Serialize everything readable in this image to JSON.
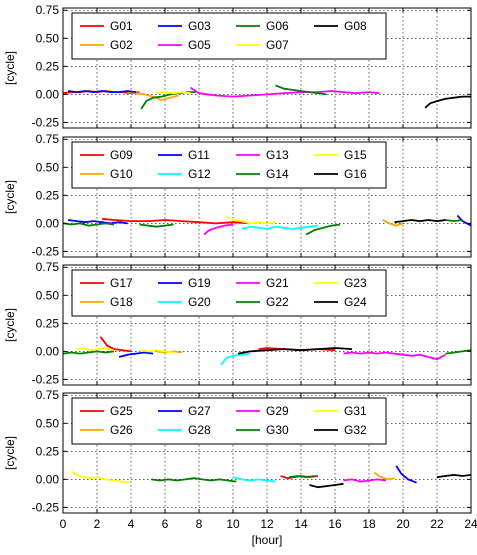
{
  "chart_data": {
    "type": "line",
    "xlabel": "[hour]",
    "ylabel": "[cycle]",
    "xlim": [
      0,
      24
    ],
    "ylim": [
      -0.3,
      0.77
    ],
    "x_ticks": [
      "0",
      "2",
      "4",
      "6",
      "8",
      "10",
      "12",
      "14",
      "16",
      "18",
      "20",
      "22",
      "24"
    ],
    "y_ticks": [
      "0.75",
      "0.50",
      "0.25",
      "0.00",
      "-0.25"
    ],
    "y_tick_values": [
      0.75,
      0.5,
      0.25,
      0.0,
      -0.25
    ],
    "grid": true,
    "legend_placement": "top-left",
    "panels": [
      {
        "series": [
          {
            "name": "G01",
            "color": "#ff0000",
            "x": [
              0.0,
              0.5,
              1.0,
              1.5,
              2.0,
              2.5,
              3.0,
              3.5,
              4.0,
              4.5
            ],
            "y": [
              0.01,
              0.02,
              0.02,
              0.03,
              0.02,
              0.03,
              0.02,
              0.02,
              0.01,
              0.02
            ]
          },
          {
            "name": "G02",
            "color": "#ffa500",
            "x": [
              3.8,
              4.3,
              4.8,
              5.3,
              5.8,
              6.3,
              6.8
            ],
            "y": [
              0.02,
              0.01,
              0.0,
              -0.02,
              -0.05,
              -0.03,
              -0.01
            ]
          },
          {
            "name": "G03",
            "color": "#0000ff",
            "x": [
              0.3,
              0.8,
              1.3,
              1.8,
              2.3,
              2.8,
              3.3,
              3.8,
              4.3
            ],
            "y": [
              0.03,
              0.02,
              0.03,
              0.02,
              0.03,
              0.02,
              0.02,
              0.03,
              0.02
            ]
          },
          {
            "name": "G05",
            "color": "#ff00ff",
            "x": [
              7.5,
              8.0,
              9.0,
              10.0,
              11.0,
              12.0,
              13.0,
              14.0,
              15.0,
              15.8,
              16.5,
              17.2,
              18.0,
              18.6
            ],
            "y": [
              0.06,
              0.01,
              -0.01,
              -0.02,
              -0.01,
              0.0,
              0.01,
              0.02,
              0.02,
              0.03,
              0.02,
              0.01,
              0.02,
              0.01
            ]
          },
          {
            "name": "G06",
            "color": "#008000",
            "x": [
              4.6,
              4.9,
              5.3,
              5.8,
              6.3,
              6.8,
              7.3,
              7.8,
              12.5,
              13.0,
              13.5,
              14.0,
              14.5,
              15.0,
              15.5
            ],
            "y": [
              -0.13,
              -0.06,
              -0.03,
              -0.02,
              0.0,
              0.01,
              0.02,
              0.02,
              0.08,
              0.05,
              0.04,
              0.03,
              0.02,
              0.01,
              0.0
            ]
          },
          {
            "name": "G07",
            "color": "#ffff00",
            "x": [
              5.5,
              6.0,
              6.5,
              7.0,
              7.5
            ],
            "y": [
              0.01,
              0.02,
              0.01,
              0.02,
              0.01
            ]
          },
          {
            "name": "G08",
            "color": "#000000",
            "x": [
              21.3,
              21.6,
              22.0,
              22.5,
              23.0,
              23.5,
              24.0
            ],
            "y": [
              -0.12,
              -0.08,
              -0.06,
              -0.04,
              -0.03,
              -0.02,
              -0.02
            ]
          }
        ]
      },
      {
        "series": [
          {
            "name": "G09",
            "color": "#ff0000",
            "x": [
              2.3,
              3.0,
              4.0,
              5.0,
              6.0,
              7.0,
              8.0,
              9.0,
              10.0,
              11.0
            ],
            "y": [
              0.04,
              0.03,
              0.02,
              0.02,
              0.03,
              0.02,
              0.01,
              0.0,
              0.01,
              0.0
            ]
          },
          {
            "name": "G10",
            "color": "#ffa500",
            "x": [
              18.8,
              19.2,
              19.6,
              20.0
            ],
            "y": [
              0.03,
              0.0,
              -0.02,
              0.0
            ]
          },
          {
            "name": "G11",
            "color": "#0000ff",
            "x": [
              0.3,
              0.8,
              1.3,
              1.8,
              2.3,
              2.8,
              3.3,
              3.8,
              23.2,
              23.5,
              24.0
            ],
            "y": [
              0.03,
              0.02,
              0.01,
              0.02,
              0.01,
              0.0,
              0.01,
              0.0,
              0.07,
              0.02,
              -0.02
            ]
          },
          {
            "name": "G12",
            "color": "#00ffff",
            "x": [
              10.5,
              11.0,
              11.5,
              12.0,
              12.5,
              13.0,
              13.5,
              14.0,
              14.5,
              15.0
            ],
            "y": [
              -0.05,
              -0.03,
              -0.04,
              -0.05,
              -0.03,
              -0.04,
              -0.05,
              -0.04,
              -0.03,
              -0.02
            ]
          },
          {
            "name": "G13",
            "color": "#ff00ff",
            "x": [
              8.3,
              8.6,
              9.0,
              9.5,
              10.0
            ],
            "y": [
              -0.1,
              -0.06,
              -0.04,
              -0.02,
              -0.01
            ]
          },
          {
            "name": "G14",
            "color": "#008000",
            "x": [
              0.0,
              0.5,
              1.0,
              1.5,
              2.0,
              2.5,
              3.0,
              4.5,
              5.0,
              5.5,
              6.0,
              6.5,
              14.3,
              14.8,
              15.3,
              15.8,
              16.3,
              22.0,
              22.5,
              23.0,
              23.5
            ],
            "y": [
              0.0,
              -0.01,
              0.0,
              -0.02,
              -0.01,
              0.0,
              -0.01,
              -0.01,
              -0.02,
              -0.03,
              -0.02,
              -0.01,
              -0.1,
              -0.06,
              -0.04,
              -0.02,
              -0.01,
              0.02,
              0.03,
              0.02,
              0.03
            ]
          },
          {
            "name": "G15",
            "color": "#ffff00",
            "x": [
              9.6,
              10.0,
              10.5,
              11.0,
              11.5,
              12.0,
              12.5
            ],
            "y": [
              0.06,
              0.03,
              0.02,
              0.0,
              0.01,
              0.0,
              0.01
            ]
          },
          {
            "name": "G16",
            "color": "#000000",
            "x": [
              19.5,
              20.0,
              20.5,
              21.0,
              21.5,
              22.0,
              22.5
            ],
            "y": [
              0.01,
              0.02,
              0.03,
              0.02,
              0.03,
              0.02,
              0.03
            ]
          }
        ]
      },
      {
        "series": [
          {
            "name": "G17",
            "color": "#ff0000",
            "x": [
              2.2,
              2.6,
              3.0,
              3.5,
              4.0,
              11.5,
              12.0,
              13.0,
              14.0,
              15.0,
              16.0
            ],
            "y": [
              0.13,
              0.05,
              0.02,
              0.01,
              0.0,
              0.02,
              0.03,
              0.02,
              0.01,
              0.02,
              0.01
            ]
          },
          {
            "name": "G18",
            "color": "#ffa500",
            "x": [
              5.5,
              6.0,
              6.5,
              7.0
            ],
            "y": [
              0.0,
              -0.01,
              0.0,
              -0.01
            ]
          },
          {
            "name": "G19",
            "color": "#0000ff",
            "x": [
              3.3,
              3.8,
              4.3,
              4.8,
              5.3
            ],
            "y": [
              -0.05,
              -0.03,
              -0.02,
              -0.01,
              -0.02
            ]
          },
          {
            "name": "G20",
            "color": "#00ffff",
            "x": [
              9.3,
              9.6,
              10.0,
              10.5,
              11.0
            ],
            "y": [
              -0.12,
              -0.06,
              -0.04,
              -0.03,
              -0.02
            ]
          },
          {
            "name": "G21",
            "color": "#ff00ff",
            "x": [
              16.5,
              17.0,
              17.5,
              18.0,
              18.5,
              19.0,
              19.5,
              20.0,
              20.5,
              21.0,
              21.5,
              22.0,
              22.5
            ],
            "y": [
              -0.02,
              -0.01,
              -0.02,
              -0.01,
              -0.02,
              -0.01,
              -0.02,
              -0.03,
              -0.04,
              -0.03,
              -0.05,
              -0.07,
              -0.03
            ]
          },
          {
            "name": "G22",
            "color": "#008000",
            "x": [
              0.0,
              0.5,
              1.0,
              1.5,
              2.0,
              2.5,
              3.0,
              22.5,
              23.0,
              23.5,
              24.0
            ],
            "y": [
              -0.02,
              -0.01,
              -0.02,
              -0.01,
              0.0,
              -0.01,
              0.0,
              -0.02,
              -0.01,
              0.0,
              0.01
            ]
          },
          {
            "name": "G23",
            "color": "#ffff00",
            "x": [
              0.8,
              1.2,
              1.6,
              2.0,
              2.4,
              3.0,
              4.5,
              5.0,
              5.5,
              6.0,
              6.5
            ],
            "y": [
              0.02,
              0.03,
              0.01,
              0.02,
              0.03,
              0.01,
              0.01,
              0.0,
              0.01,
              0.0,
              -0.01
            ]
          },
          {
            "name": "G24",
            "color": "#000000",
            "x": [
              10.3,
              11.0,
              12.0,
              13.0,
              14.0,
              15.0,
              16.0,
              17.0
            ],
            "y": [
              -0.02,
              0.0,
              0.01,
              0.02,
              0.01,
              0.02,
              0.03,
              0.02
            ]
          }
        ]
      },
      {
        "series": [
          {
            "name": "G25",
            "color": "#ff0000",
            "x": [
              12.8,
              13.2,
              13.6,
              14.0,
              14.5,
              15.0
            ],
            "y": [
              0.03,
              0.01,
              0.02,
              0.03,
              0.02,
              0.03
            ]
          },
          {
            "name": "G26",
            "color": "#ffa500",
            "x": [
              18.3,
              18.7,
              19.1,
              19.5
            ],
            "y": [
              0.06,
              0.02,
              0.0,
              0.01
            ]
          },
          {
            "name": "G27",
            "color": "#0000ff",
            "x": [
              19.6,
              19.9,
              20.3,
              20.8
            ],
            "y": [
              0.12,
              0.05,
              0.0,
              -0.03
            ]
          },
          {
            "name": "G28",
            "color": "#00ffff",
            "x": [
              10.0,
              10.5,
              11.0,
              11.5,
              12.0,
              12.5
            ],
            "y": [
              0.02,
              0.0,
              -0.01,
              0.0,
              -0.01,
              -0.02
            ]
          },
          {
            "name": "G29",
            "color": "#ff00ff",
            "x": [
              16.5,
              17.0,
              17.5,
              18.0,
              18.5,
              19.0
            ],
            "y": [
              -0.01,
              0.0,
              -0.02,
              -0.01,
              0.0,
              -0.01
            ]
          },
          {
            "name": "G30",
            "color": "#008000",
            "x": [
              5.2,
              5.7,
              6.2,
              6.7,
              7.2,
              7.7,
              8.2,
              8.7,
              9.2,
              9.7,
              10.2,
              13.3,
              13.8,
              14.3,
              14.8
            ],
            "y": [
              0.0,
              -0.01,
              0.0,
              -0.01,
              0.0,
              0.01,
              0.0,
              -0.01,
              0.0,
              -0.01,
              -0.02,
              0.02,
              0.03,
              0.02,
              0.03
            ]
          },
          {
            "name": "G31",
            "color": "#ffff00",
            "x": [
              0.5,
              0.8,
              1.2,
              1.6,
              2.0,
              2.5,
              3.0,
              3.5,
              3.9
            ],
            "y": [
              0.07,
              0.04,
              0.02,
              0.01,
              0.02,
              0.0,
              -0.01,
              -0.02,
              -0.03
            ]
          },
          {
            "name": "G32",
            "color": "#000000",
            "x": [
              14.5,
              15.0,
              15.5,
              16.0,
              16.5,
              22.0,
              22.5,
              23.0,
              23.5,
              24.0
            ],
            "y": [
              -0.05,
              -0.07,
              -0.06,
              -0.05,
              -0.04,
              0.02,
              0.03,
              0.04,
              0.03,
              0.04
            ]
          }
        ]
      }
    ]
  }
}
